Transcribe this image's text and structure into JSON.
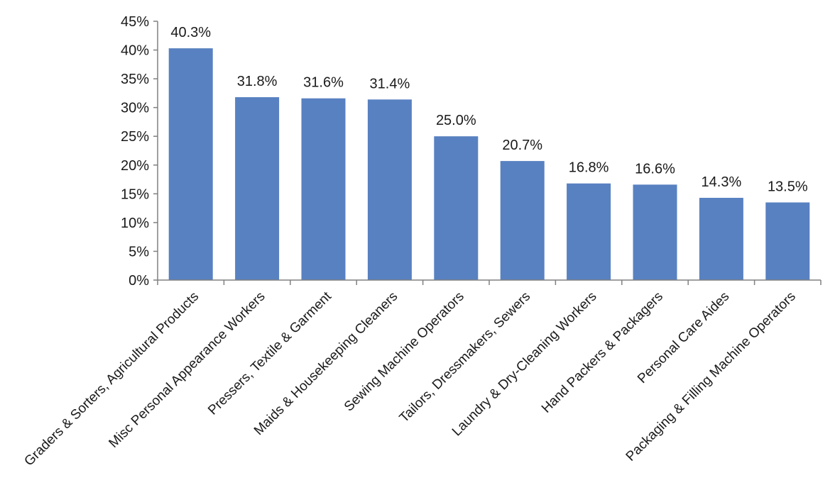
{
  "chart_data": {
    "type": "bar",
    "title": "",
    "xlabel": "",
    "ylabel": "",
    "categories": [
      "Graders & Sorters, Agricultural Products",
      "Misc Personal Appearance Workers",
      "Pressers, Textile & Garment",
      "Maids & Housekeeping Cleaners",
      "Sewing Machine Operators",
      "Tailors, Dressmakers, Sewers",
      "Laundry & Dry-Cleaning Workers",
      "Hand Packers & Packagers",
      "Personal Care Aides",
      "Packaging & Filling Machine Operators"
    ],
    "values": [
      40.3,
      31.8,
      31.6,
      31.4,
      25.0,
      20.7,
      16.8,
      16.6,
      14.3,
      13.5
    ],
    "data_labels": [
      "40.3%",
      "31.8%",
      "31.6%",
      "31.4%",
      "25.0%",
      "20.7%",
      "16.8%",
      "16.6%",
      "14.3%",
      "13.5%"
    ],
    "ylim": [
      0,
      45
    ],
    "yticks": [
      0,
      5,
      10,
      15,
      20,
      25,
      30,
      35,
      40,
      45
    ],
    "ytick_labels": [
      "0%",
      "5%",
      "10%",
      "15%",
      "20%",
      "25%",
      "30%",
      "35%",
      "40%",
      "45%"
    ],
    "grid": false,
    "legend": "none",
    "bar_color": "#5881c1"
  }
}
